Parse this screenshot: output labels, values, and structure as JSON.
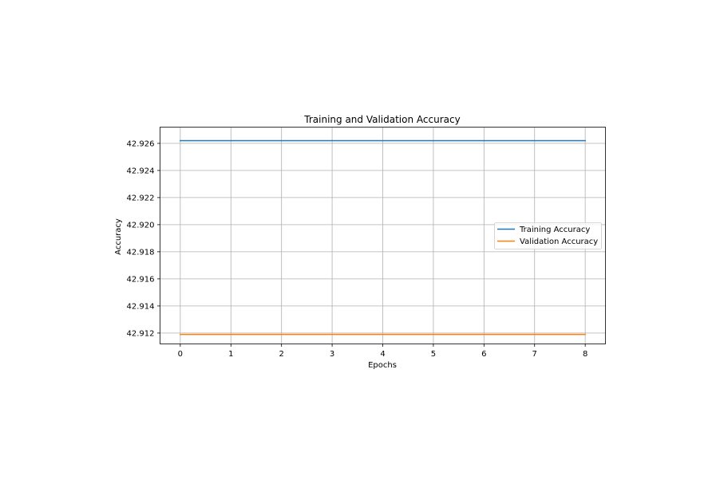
{
  "chart_data": {
    "type": "line",
    "title": "Training and Validation Accuracy",
    "xlabel": "Epochs",
    "ylabel": "Accuracy",
    "x": [
      0,
      1,
      2,
      3,
      4,
      5,
      6,
      7,
      8
    ],
    "xlim": [
      -0.4,
      8.4
    ],
    "ylim": [
      42.9112,
      42.9272
    ],
    "x_ticks": [
      "0",
      "1",
      "2",
      "3",
      "4",
      "5",
      "6",
      "7",
      "8"
    ],
    "y_ticks": [
      "42.912",
      "42.914",
      "42.916",
      "42.918",
      "42.920",
      "42.922",
      "42.924",
      "42.926"
    ],
    "grid": true,
    "legend_position": "center-right",
    "series": [
      {
        "name": "Training Accuracy",
        "color": "#1f77b4",
        "values": [
          42.9262,
          42.9262,
          42.9262,
          42.9262,
          42.9262,
          42.9262,
          42.9262,
          42.9262,
          42.9262
        ]
      },
      {
        "name": "Validation Accuracy",
        "color": "#ff7f0e",
        "values": [
          42.9119,
          42.9119,
          42.9119,
          42.9119,
          42.9119,
          42.9119,
          42.9119,
          42.9119,
          42.9119
        ]
      }
    ]
  }
}
